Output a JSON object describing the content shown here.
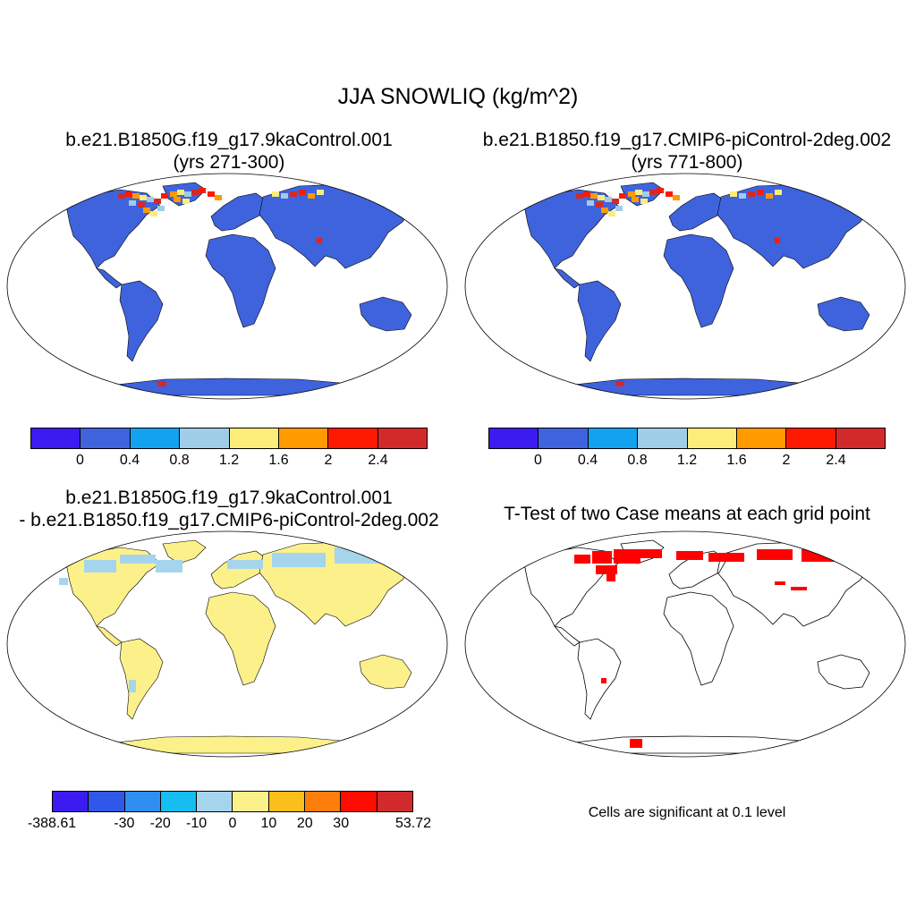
{
  "title": "JJA SNOWLIQ (kg/m^2)",
  "panels": [
    {
      "title_line1": "b.e21.B1850G.f19_g17.9kaControl.001",
      "title_line2": "(yrs 271-300)"
    },
    {
      "title_line1": "b.e21.B1850.f19_g17.CMIP6-piControl-2deg.002",
      "title_line2": "(yrs 771-800)"
    },
    {
      "title_line1": "b.e21.B1850G.f19_g17.9kaControl.001",
      "title_line2": "- b.e21.B1850.f19_g17.CMIP6-piControl-2deg.002"
    },
    {
      "title_line1": "T-Test of two Case means at each grid point",
      "title_line2": ""
    }
  ],
  "colorbars": {
    "abs": {
      "colors": [
        "#3b1bf0",
        "#3f63dc",
        "#12a2f0",
        "#9fcde8",
        "#fcec7a",
        "#ff9a00",
        "#fe1a00",
        "#d22a2a"
      ],
      "labels": [
        "0",
        "0.4",
        "0.8",
        "1.2",
        "1.6",
        "2",
        "2.4"
      ]
    },
    "diff": {
      "colors": [
        "#3b1bf0",
        "#2f57e8",
        "#2f8ff0",
        "#15bdf0",
        "#a5d5ec",
        "#fbf08a",
        "#fbbf1b",
        "#ff7e0b",
        "#fd0d00",
        "#d22a2a"
      ],
      "labels": [
        "-388.61",
        "-30",
        "-20",
        "-10",
        "0",
        "10",
        "20",
        "30",
        "53.72"
      ]
    }
  },
  "ttest_note": "Cells are significant at 0.1 level",
  "map_colors": {
    "land_abs": "#3f63dc",
    "land_diff": "#fbf08a",
    "diff_negative": "#a5d5ec",
    "significant": "#fe0000",
    "high_snow": [
      "#d22a2a",
      "#fe1a00",
      "#ff9a00",
      "#fcec7a",
      "#9fcde8"
    ]
  }
}
